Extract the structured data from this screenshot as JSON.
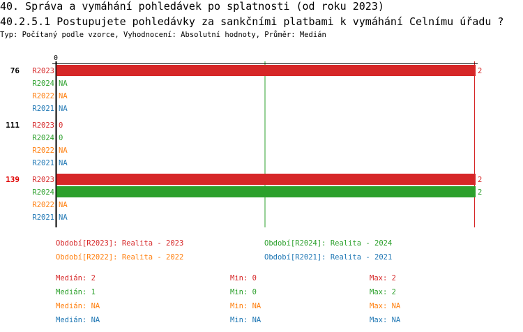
{
  "header": {
    "title": "40. Správa a vymáhání pohledávek po splatnosti (od roku 2023)",
    "question": "40.2.5.1 Postupujete pohledávky za sankčními platbami k vymáhání Celnímu úřadu ?",
    "info": "Typ: Počítaný podle vzorce, Vyhodnocení: Absolutní hodnoty, Průměr: Medián"
  },
  "chart_data": {
    "type": "bar",
    "orientation": "horizontal",
    "xlim": [
      0,
      2
    ],
    "x_ticks": [
      "0"
    ],
    "series_colors": {
      "R2023": "#d62728",
      "R2024": "#2ca02c",
      "R2022": "#ff7f0e",
      "R2021": "#1f77b4"
    },
    "groups": [
      {
        "label": "76",
        "highlight": false,
        "rows": [
          {
            "series": "R2023",
            "value": 2,
            "label": "2"
          },
          {
            "series": "R2024",
            "value": null,
            "label": "NA"
          },
          {
            "series": "R2022",
            "value": null,
            "label": "NA"
          },
          {
            "series": "R2021",
            "value": null,
            "label": "NA"
          }
        ]
      },
      {
        "label": "111",
        "highlight": false,
        "rows": [
          {
            "series": "R2023",
            "value": 0,
            "label": "0"
          },
          {
            "series": "R2024",
            "value": 0,
            "label": "0"
          },
          {
            "series": "R2022",
            "value": null,
            "label": "NA"
          },
          {
            "series": "R2021",
            "value": null,
            "label": "NA"
          }
        ]
      },
      {
        "label": "139",
        "highlight": true,
        "rows": [
          {
            "series": "R2023",
            "value": 2,
            "label": "2"
          },
          {
            "series": "R2024",
            "value": 2,
            "label": "2"
          },
          {
            "series": "R2022",
            "value": null,
            "label": "NA"
          },
          {
            "series": "R2021",
            "value": null,
            "label": "NA"
          }
        ]
      }
    ],
    "median_lines": [
      {
        "series": "R2024",
        "value": 1
      },
      {
        "series": "R2023",
        "value": 2
      }
    ],
    "legend": [
      {
        "series": "R2023",
        "text": "Období[R2023]: Realita - 2023"
      },
      {
        "series": "R2024",
        "text": "Období[R2024]: Realita - 2024"
      },
      {
        "series": "R2022",
        "text": "Období[R2022]: Realita - 2022"
      },
      {
        "series": "R2021",
        "text": "Období[R2021]: Realita - 2021"
      }
    ],
    "stats": [
      {
        "series": "R2023",
        "median": "Medián: 2",
        "min": "Min: 0",
        "max": "Max: 2"
      },
      {
        "series": "R2024",
        "median": "Medián: 1",
        "min": "Min: 0",
        "max": "Max: 2"
      },
      {
        "series": "R2022",
        "median": "Medián: NA",
        "min": "Min: NA",
        "max": "Max: NA"
      },
      {
        "series": "R2021",
        "median": "Medián: NA",
        "min": "Min: NA",
        "max": "Max: NA"
      }
    ]
  }
}
